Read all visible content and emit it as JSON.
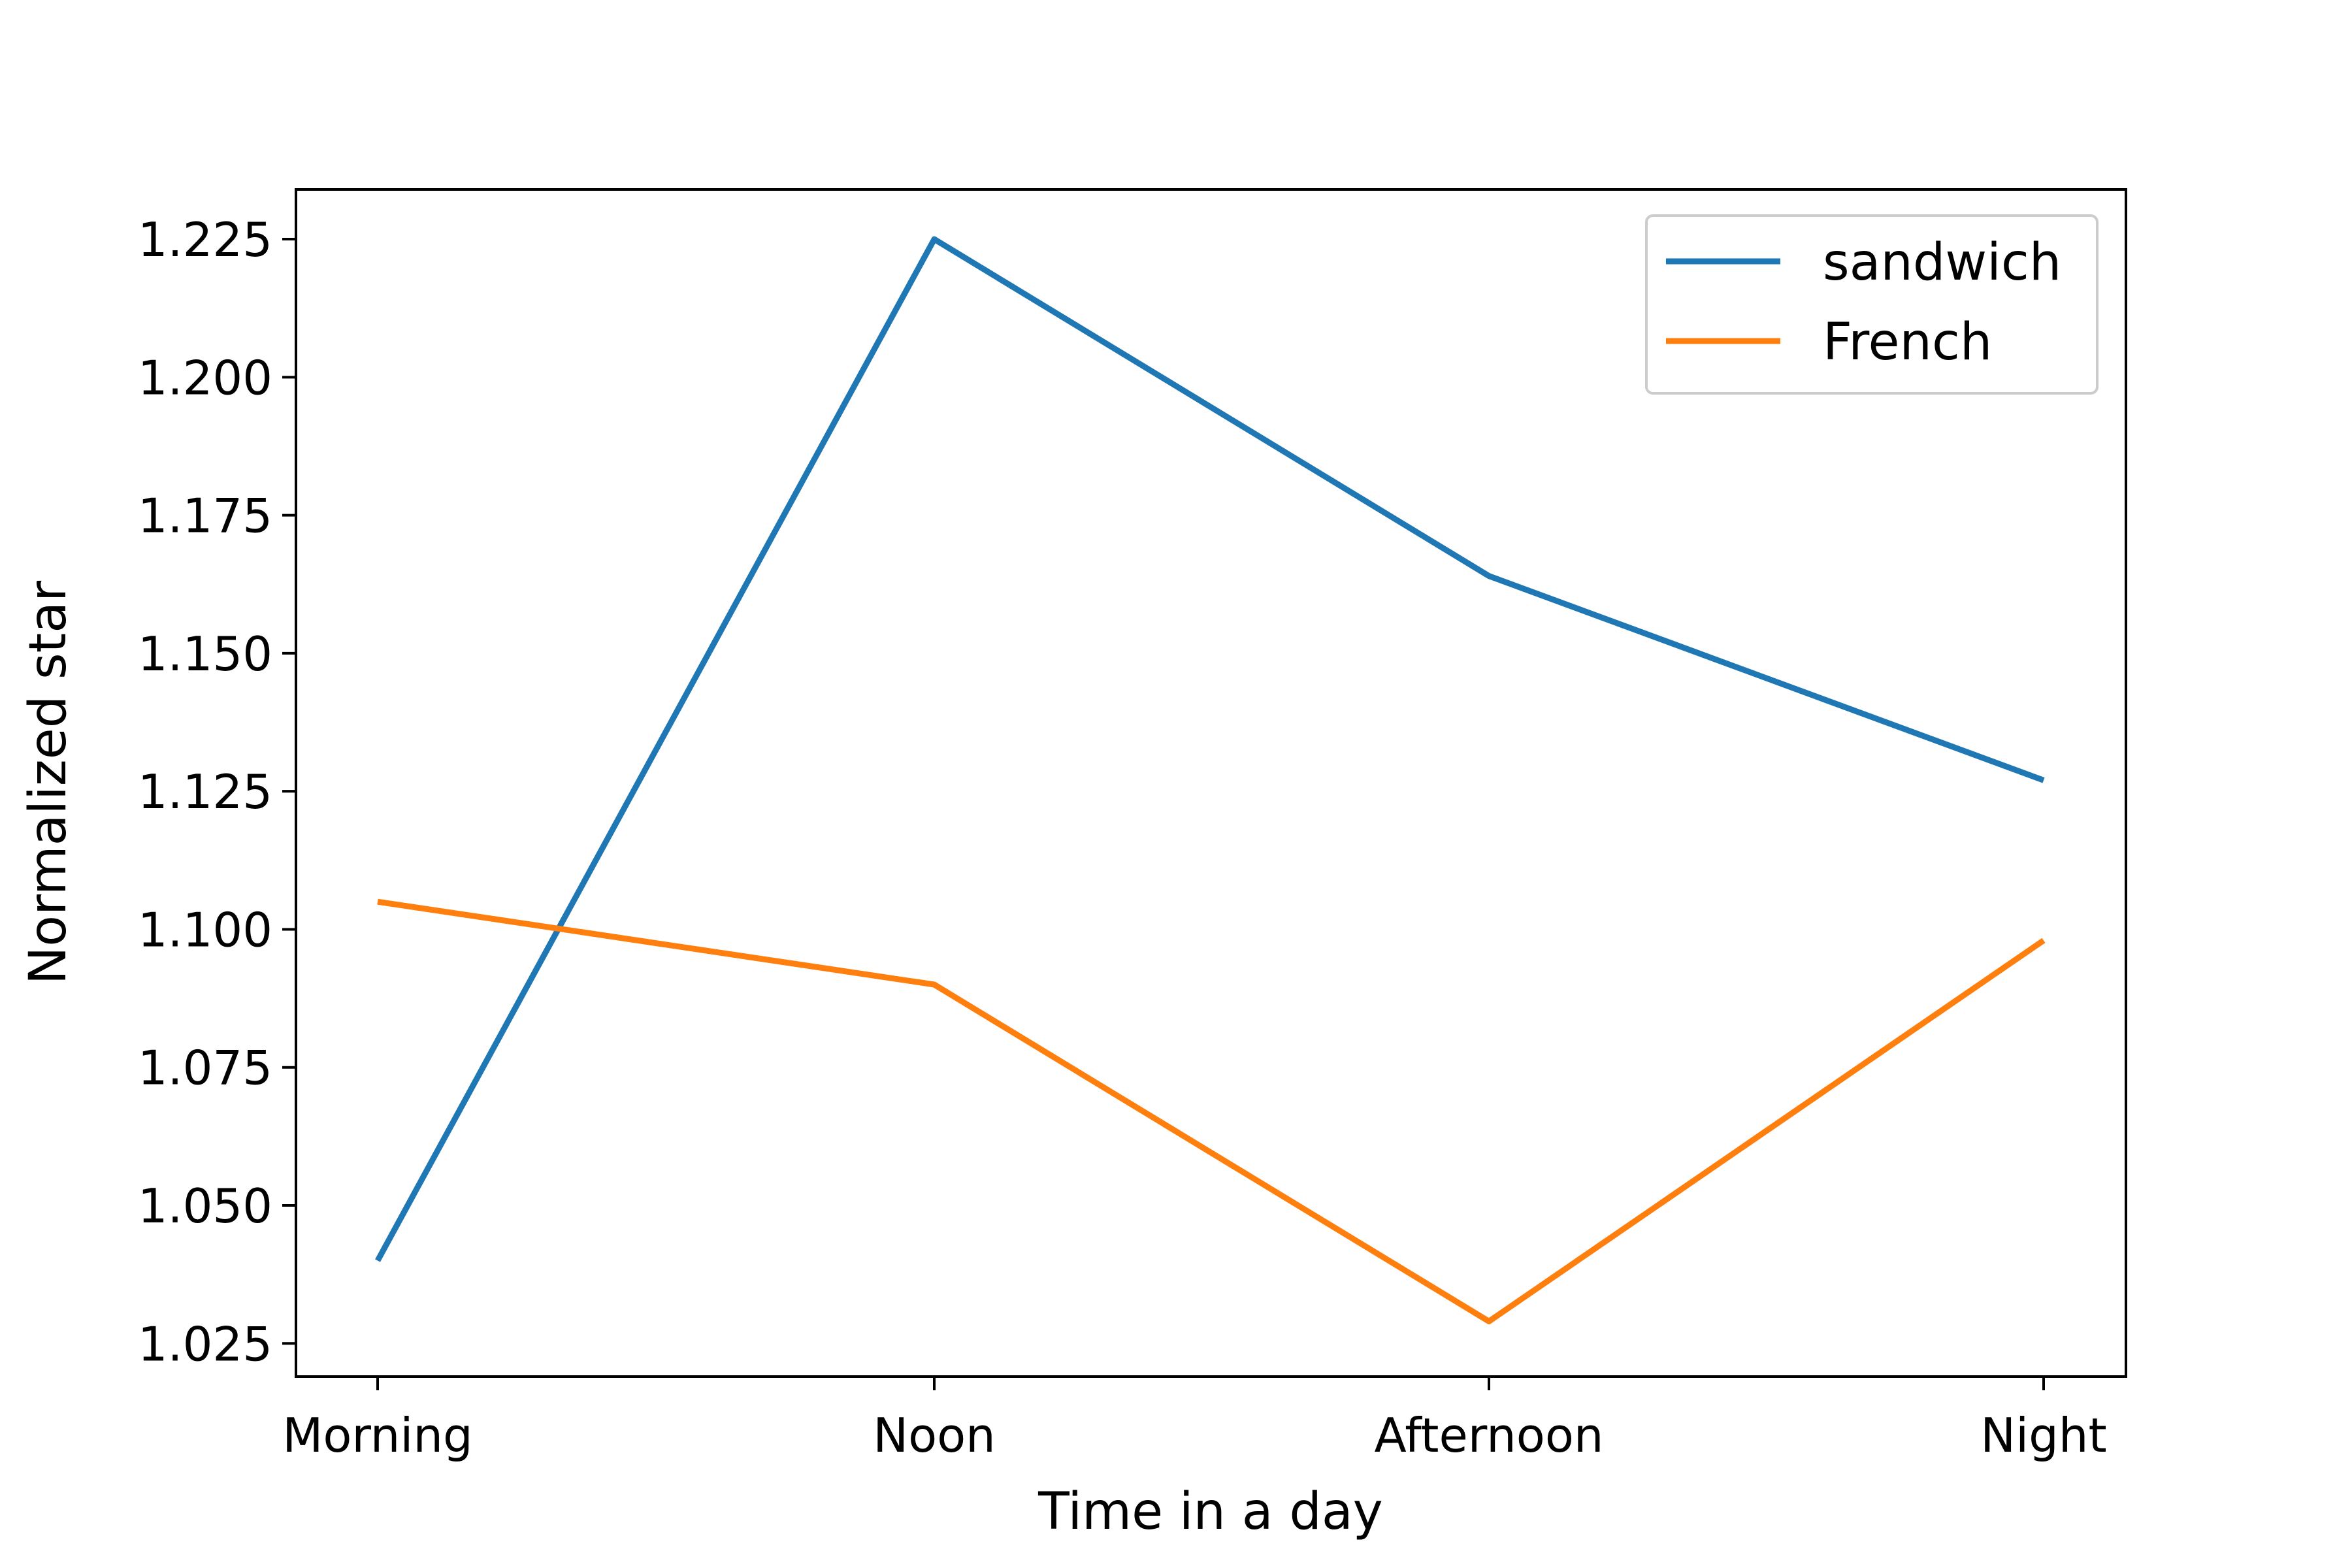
{
  "chart_data": {
    "type": "line",
    "title": "",
    "xlabel": "Time in a day",
    "ylabel": "Normalized star",
    "categories": [
      "Morning",
      "Noon",
      "Afternoon",
      "Night"
    ],
    "ylim": [
      1.019,
      1.234
    ],
    "yticks": [
      "1.025",
      "1.050",
      "1.075",
      "1.100",
      "1.125",
      "1.150",
      "1.175",
      "1.200",
      "1.225"
    ],
    "grid": false,
    "legend_position": "top-right",
    "series": [
      {
        "name": "sandwich",
        "color": "#1f77b4",
        "values": [
          1.04,
          1.225,
          1.164,
          1.127
        ]
      },
      {
        "name": "French",
        "color": "#ff7f0e",
        "values": [
          1.105,
          1.09,
          1.029,
          1.098
        ]
      }
    ]
  }
}
